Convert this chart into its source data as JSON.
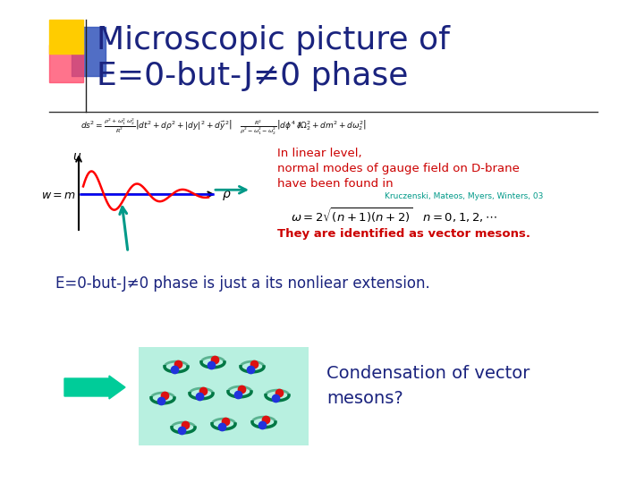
{
  "title_line1": "Microscopic picture of",
  "title_line2": "E=0-but-J≠0 phase",
  "title_color": "#1a237e",
  "title_fontsize": 26,
  "bg_color": "#ffffff",
  "text_linear": "In linear level,",
  "text_normal": "normal modes of gauge field on D-brane",
  "text_found": "have been found in",
  "text_ref": "Kruczenski, Mateos, Myers, Winters, 03",
  "text_vector": "They are identified as vector mesons.",
  "text_extension": "E=0-but-J≠0 phase is just a its nonliear extension.",
  "text_condensation": "Condensation of vector\nmesons?",
  "red_color": "#cc0000",
  "teal_color": "#009988",
  "dark_blue": "#1a237e",
  "green_arrow_color": "#00cc99",
  "decoration_yellow": "#ffcc00",
  "decoration_pink": "#ff4466",
  "decoration_blue": "#3355bb"
}
